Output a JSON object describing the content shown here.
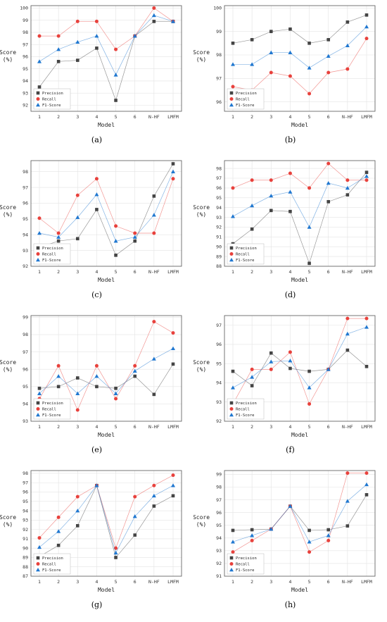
{
  "colors": {
    "Precision": "#444444",
    "Recall": "#e8413c",
    "F1-Score": "#1f77d0"
  },
  "chart_data": [
    {
      "type": "line",
      "caption": "(a)",
      "legend": "bottom-left",
      "categories": [
        "1",
        "2",
        "3",
        "4",
        "5",
        "6",
        "N-HF",
        "LMFM"
      ],
      "xlabel": "Model",
      "ylabel": "Score\n(%)",
      "ylim": [
        91.5,
        100.2
      ],
      "yticks": [
        92,
        93,
        94,
        95,
        96,
        97,
        98,
        99,
        100
      ],
      "series": [
        {
          "name": "Precision",
          "marker": "square",
          "values": [
            93.5,
            95.6,
            95.7,
            96.7,
            92.4,
            97.7,
            98.9,
            98.9
          ]
        },
        {
          "name": "Recall",
          "marker": "circle",
          "values": [
            97.7,
            97.7,
            98.9,
            98.9,
            96.6,
            97.7,
            100.0,
            98.9
          ]
        },
        {
          "name": "F1-Score",
          "marker": "triangle",
          "values": [
            95.6,
            96.6,
            97.2,
            97.7,
            94.5,
            97.7,
            99.4,
            98.9
          ]
        }
      ]
    },
    {
      "type": "line",
      "caption": "(b)",
      "legend": "bottom-left",
      "categories": [
        "1",
        "2",
        "3",
        "4",
        "5",
        "6",
        "N-HF",
        "LMFM"
      ],
      "xlabel": "Model",
      "ylabel": "Score\n(%)",
      "ylim": [
        95.6,
        100.1
      ],
      "yticks": [
        96,
        97,
        98,
        99,
        100
      ],
      "series": [
        {
          "name": "Precision",
          "marker": "square",
          "values": [
            98.5,
            98.65,
            99.0,
            99.1,
            98.5,
            98.65,
            99.4,
            99.7
          ]
        },
        {
          "name": "Recall",
          "marker": "circle",
          "values": [
            96.65,
            96.5,
            97.25,
            97.1,
            96.35,
            97.25,
            97.4,
            98.7
          ]
        },
        {
          "name": "F1-Score",
          "marker": "triangle",
          "values": [
            97.6,
            97.6,
            98.1,
            98.1,
            97.45,
            97.95,
            98.4,
            99.2
          ]
        }
      ]
    },
    {
      "type": "line",
      "caption": "(c)",
      "legend": "bottom-left",
      "categories": [
        "1",
        "2",
        "3",
        "4",
        "5",
        "6",
        "N-HF",
        "LMFM"
      ],
      "xlabel": "Model",
      "ylabel": "Score\n(%)",
      "ylim": [
        92.0,
        98.7
      ],
      "yticks": [
        92,
        93,
        94,
        95,
        96,
        97,
        98
      ],
      "series": [
        {
          "name": "Precision",
          "marker": "square",
          "values": [
            93.2,
            93.6,
            93.75,
            95.6,
            92.7,
            93.6,
            96.45,
            98.5
          ]
        },
        {
          "name": "Recall",
          "marker": "circle",
          "values": [
            95.05,
            94.1,
            96.5,
            97.55,
            94.55,
            94.1,
            94.1,
            97.55
          ]
        },
        {
          "name": "F1-Score",
          "marker": "triangle",
          "values": [
            94.1,
            93.85,
            95.1,
            96.55,
            93.6,
            93.85,
            95.25,
            98.0
          ]
        }
      ]
    },
    {
      "type": "line",
      "caption": "(d)",
      "legend": "bottom-left",
      "categories": [
        "1",
        "2",
        "3",
        "4",
        "5",
        "6",
        "N-HF",
        "LMFM"
      ],
      "xlabel": "Model",
      "ylabel": "Score\n(%)",
      "ylim": [
        88.0,
        98.8
      ],
      "yticks": [
        88,
        89,
        90,
        91,
        92,
        93,
        94,
        95,
        96,
        97,
        98
      ],
      "series": [
        {
          "name": "Precision",
          "marker": "square",
          "values": [
            90.3,
            91.8,
            93.7,
            93.6,
            88.3,
            94.6,
            95.3,
            97.6
          ]
        },
        {
          "name": "Recall",
          "marker": "circle",
          "values": [
            96.0,
            96.8,
            96.8,
            97.5,
            96.0,
            98.5,
            96.8,
            96.8
          ]
        },
        {
          "name": "F1-Score",
          "marker": "triangle",
          "values": [
            93.1,
            94.2,
            95.2,
            95.6,
            92.0,
            96.5,
            96.0,
            97.2
          ]
        }
      ]
    },
    {
      "type": "line",
      "caption": "(e)",
      "legend": "bottom-left",
      "categories": [
        "1",
        "2",
        "3",
        "4",
        "5",
        "6",
        "N-HF",
        "LMFM"
      ],
      "xlabel": "Model",
      "ylabel": "Score\n(%)",
      "ylim": [
        93.0,
        99.1
      ],
      "yticks": [
        93,
        94,
        95,
        96,
        97,
        98,
        99
      ],
      "series": [
        {
          "name": "Precision",
          "marker": "square",
          "values": [
            94.9,
            95.0,
            95.5,
            95.0,
            94.9,
            95.6,
            94.55,
            96.3
          ]
        },
        {
          "name": "Recall",
          "marker": "circle",
          "values": [
            94.3,
            96.2,
            93.65,
            96.2,
            94.3,
            96.2,
            98.75,
            98.1
          ]
        },
        {
          "name": "F1-Score",
          "marker": "triangle",
          "values": [
            94.6,
            95.6,
            94.6,
            95.6,
            94.6,
            95.9,
            96.6,
            97.2
          ]
        }
      ]
    },
    {
      "type": "line",
      "caption": "(f)",
      "legend": "bottom-left",
      "categories": [
        "1",
        "2",
        "3",
        "4",
        "5",
        "6",
        "N-HF",
        "LMFM"
      ],
      "xlabel": "Model",
      "ylabel": "Score\n(%)",
      "ylim": [
        92.0,
        97.5
      ],
      "yticks": [
        92,
        93,
        94,
        95,
        96,
        97
      ],
      "series": [
        {
          "name": "Precision",
          "marker": "square",
          "values": [
            94.6,
            93.85,
            95.55,
            94.75,
            94.6,
            94.7,
            95.7,
            94.85
          ]
        },
        {
          "name": "Recall",
          "marker": "circle",
          "values": [
            92.9,
            94.7,
            94.7,
            95.6,
            92.9,
            94.7,
            97.35,
            97.35
          ]
        },
        {
          "name": "F1-Score",
          "marker": "triangle",
          "values": [
            93.75,
            94.3,
            95.1,
            95.15,
            93.75,
            94.7,
            96.55,
            96.9
          ]
        }
      ]
    },
    {
      "type": "line",
      "caption": "(g)",
      "legend": "bottom-left",
      "categories": [
        "1",
        "2",
        "3",
        "4",
        "5",
        "6",
        "N-HF",
        "LMFM"
      ],
      "xlabel": "Model",
      "ylabel": "Score\n(%)",
      "ylim": [
        87.0,
        98.3
      ],
      "yticks": [
        87,
        88,
        89,
        90,
        91,
        92,
        93,
        94,
        95,
        96,
        97,
        98
      ],
      "series": [
        {
          "name": "Precision",
          "marker": "square",
          "values": [
            89.1,
            90.3,
            92.4,
            96.7,
            89.0,
            91.4,
            94.5,
            95.6
          ]
        },
        {
          "name": "Recall",
          "marker": "circle",
          "values": [
            91.1,
            93.3,
            95.5,
            96.7,
            90.0,
            95.5,
            96.7,
            97.8
          ]
        },
        {
          "name": "F1-Score",
          "marker": "triangle",
          "values": [
            90.1,
            91.8,
            94.0,
            96.7,
            89.5,
            93.4,
            95.6,
            96.7
          ]
        }
      ]
    },
    {
      "type": "line",
      "caption": "(h)",
      "legend": "bottom-left",
      "categories": [
        "1",
        "2",
        "3",
        "4",
        "5",
        "6",
        "N-HF",
        "LMFM"
      ],
      "xlabel": "Model",
      "ylabel": "Score\n(%)",
      "ylim": [
        91.0,
        99.3
      ],
      "yticks": [
        91,
        92,
        93,
        94,
        95,
        96,
        97,
        98,
        99
      ],
      "series": [
        {
          "name": "Precision",
          "marker": "square",
          "values": [
            94.6,
            94.65,
            94.7,
            96.5,
            94.6,
            94.65,
            94.95,
            97.4
          ]
        },
        {
          "name": "Recall",
          "marker": "circle",
          "values": [
            92.9,
            93.8,
            94.7,
            96.5,
            92.9,
            93.8,
            99.1,
            99.1
          ]
        },
        {
          "name": "F1-Score",
          "marker": "triangle",
          "values": [
            93.7,
            94.2,
            94.7,
            96.5,
            93.7,
            94.2,
            96.9,
            98.2
          ]
        }
      ]
    }
  ]
}
